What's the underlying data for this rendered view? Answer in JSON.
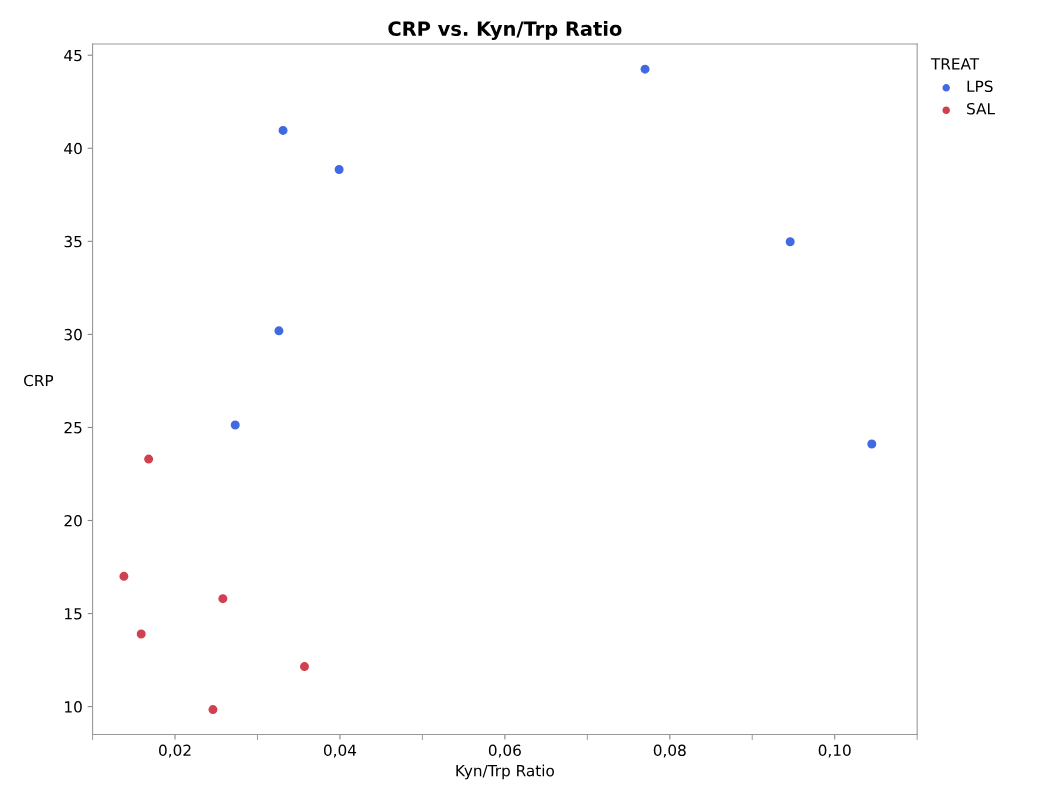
{
  "chart_data": {
    "type": "scatter",
    "title": "CRP vs. Kyn/Trp Ratio",
    "xlabel": "Kyn/Trp Ratio",
    "ylabel": "CRP",
    "legend_title": "TREAT",
    "legend": "top right",
    "marker": "circle",
    "grid": false,
    "xlim": [
      0.01,
      0.11
    ],
    "ylim": [
      8.5,
      45.6
    ],
    "xticks": [
      {
        "value": 0.02,
        "label": "0,02"
      },
      {
        "value": 0.04,
        "label": "0,04"
      },
      {
        "value": 0.06,
        "label": "0,06"
      },
      {
        "value": 0.08,
        "label": "0,08"
      },
      {
        "value": 0.1,
        "label": "0,10"
      }
    ],
    "yticks": [
      10,
      15,
      20,
      25,
      30,
      35,
      40,
      45
    ],
    "series": [
      {
        "name": "LPS",
        "color": "#4169e1",
        "x": [
          0.077,
          0.0331,
          0.0399,
          0.0946,
          0.0326,
          0.0273,
          0.1045
        ],
        "values": [
          44.25,
          40.96,
          38.86,
          34.98,
          30.19,
          25.13,
          24.11
        ]
      },
      {
        "name": "SAL",
        "color": "#d0414f",
        "x": [
          0.0168,
          0.0138,
          0.0258,
          0.0159,
          0.0357,
          0.0246
        ],
        "values": [
          23.3,
          17.0,
          15.8,
          13.9,
          12.15,
          9.84
        ]
      }
    ]
  }
}
